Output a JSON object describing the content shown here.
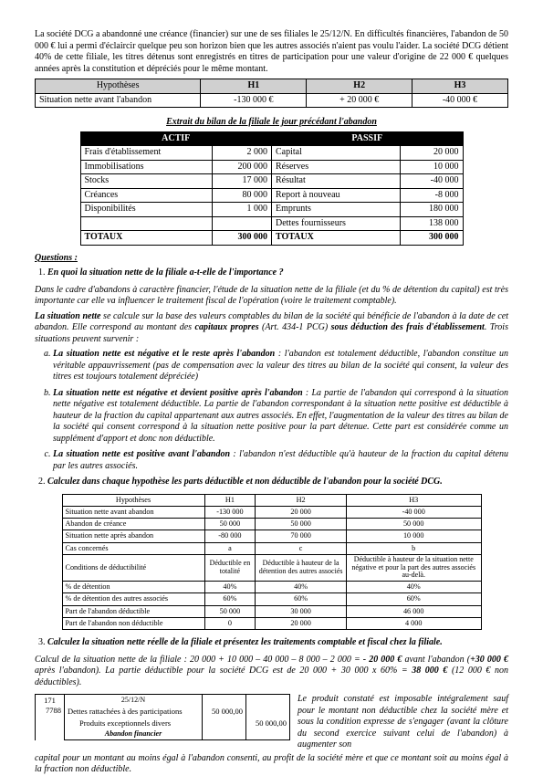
{
  "intro": "La société DCG a abandonné une créance (financier) sur une de ses filiales le 25/12/N. En difficultés financières, l'abandon de 50 000 € lui a permi d'éclaircir quelque peu son horizon bien que les autres associés n'aient pas voulu l'aider. La société DCG détient 40% de cette filiale, les titres détenus sont enregistrés en titres de participation pour une valeur d'origine de 22 000 € quelques années après la constitution et dépréciés pour le même montant.",
  "hyp": {
    "head_label": "Hypothèses",
    "cols": [
      "H1",
      "H2",
      "H3"
    ],
    "row_label": "Situation nette avant l'abandon",
    "vals": [
      "-130 000 €",
      "+ 20 000 €",
      "-40 000 €"
    ]
  },
  "bilan": {
    "title": "Extrait du bilan de la filiale le jour précédant l'abandon",
    "h_actif": "ACTIF",
    "h_passif": "PASSIF",
    "rows": [
      {
        "al": "Frais d'établissement",
        "av": "2 000",
        "pl": "Capital",
        "pv": "20 000"
      },
      {
        "al": "Immobilisations",
        "av": "200 000",
        "pl": "Réserves",
        "pv": "10 000"
      },
      {
        "al": "Stocks",
        "av": "17 000",
        "pl": "Résultat",
        "pv": "-40 000"
      },
      {
        "al": "Créances",
        "av": "80 000",
        "pl": "Report à nouveau",
        "pv": "-8 000"
      },
      {
        "al": "Disponibilités",
        "av": "1 000",
        "pl": "Emprunts",
        "pv": "180 000"
      },
      {
        "al": "",
        "av": "",
        "pl": "Dettes fournisseurs",
        "pv": "138 000"
      }
    ],
    "tot_label": "TOTAUX",
    "tot_a": "300 000",
    "tot_p": "300 000"
  },
  "questions_h": "Questions :",
  "q1": {
    "title": "En quoi la situation nette de la filiale a-t-elle de l'importance ?",
    "p1": "Dans le cadre d'abandons à caractère financier, l'étude de la situation nette de la filiale (et du % de détention du capital) est très importante car elle va influencer le traitement fiscal de l'opération (voire le traitement comptable).",
    "p2a": "La situation nette",
    "p2b": " se calcule sur la base des valeurs comptables du bilan de la société qui bénéficie de l'abandon à la date de cet abandon. Elle correspond au montant des ",
    "p2c": "capitaux propres",
    "p2d": " (Art. 434-1 PCG) ",
    "p2e": "sous déduction des frais d'établissement",
    "p2f": ". Trois situations peuvent survenir :",
    "a_lead": "La situation nette est négative et le reste après l'abandon",
    "a_txt": " : l'abandon est totalement déductible, l'abandon constitue un véritable appauvrissement (pas de compensation avec la valeur des titres au bilan de la société qui consent, la valeur des titres est toujours totalement dépréciée)",
    "b_lead": "La situation nette est négative et devient positive après l'abandon",
    "b_txt": " : La partie de l'abandon qui correspond à la situation nette négative est totalement déductible. La partie de l'abandon correspondant à la situation nette positive est déductible à hauteur de la fraction du capital appartenant aux autres associés. En effet, l'augmentation de la valeur des titres au bilan de la société qui consent correspond à la situation nette positive pour la part détenue. Cette part est considérée comme un supplément d'apport et donc non déductible.",
    "c_lead": "La situation nette est positive avant l'abandon",
    "c_txt": " : l'abandon n'est déductible qu'à hauteur de la fraction du capital détenu par les autres associés."
  },
  "q2": {
    "title": "Calculez dans chaque hypothèse les parts déductible et non déductible de l'abandon pour la société DCG.",
    "head": [
      "Hypothèses",
      "H1",
      "H2",
      "H3"
    ],
    "rows": [
      [
        "Situation nette avant abandon",
        "-130 000",
        "20 000",
        "-40 000"
      ],
      [
        "Abandon de créance",
        "50 000",
        "50 000",
        "50 000"
      ],
      [
        "Situation nette après abandon",
        "-80 000",
        "70 000",
        "10 000"
      ],
      [
        "Cas concernés",
        "a",
        "c",
        "b"
      ]
    ],
    "cond_label": "Conditions de déductibilité",
    "cond": [
      "Déductible en totalité",
      "Déductible à hauteur de la détention des autres associés",
      "Déductible à hauteur de la situation nette négative et pour la part des autres associés au-delà."
    ],
    "rows2": [
      [
        "% de détention",
        "40%",
        "40%",
        "40%"
      ],
      [
        "% de détention des autres associés",
        "60%",
        "60%",
        "60%"
      ],
      [
        "Part de l'abandon déductible",
        "50 000",
        "30 000",
        "46 000"
      ],
      [
        "Part de l'abandon non déductible",
        "0",
        "20 000",
        "4 000"
      ]
    ]
  },
  "q3": {
    "title": "Calculez la situation nette réelle de la filiale et présentez les traitements comptable et fiscal chez la filiale.",
    "calc": "Calcul de la situation nette de la filiale : 20 000 + 10 000 – 40 000 – 8 000 – 2 000 = - 20 000 € avant l'abandon (+30 000 € après l'abandon). La partie déductible pour la société DCG est de 20 000 + 30 000 x 60% = 38 000 € (12 000 € non déductibles).",
    "acc": {
      "date": "25/12/N",
      "c1": "171",
      "c2": "7788",
      "l1": "Dettes rattachées à des participations",
      "l2": "Produits exceptionnels divers",
      "l3": "Abandon financier",
      "d": "50 000,00",
      "c": "50 000,00"
    },
    "side": "Le produit constaté est imposable intégralement sauf pour le montant non déductible chez la société mère et sous la condition expresse de s'engager (avant la clôture du second exercice suivant celui de l'abandon) à augmenter son"
  },
  "tail": "capital pour un montant au moins égal à l'abandon consenti, au profit de la société mère et que ce montant soit au moins égal à la fraction non déductible."
}
